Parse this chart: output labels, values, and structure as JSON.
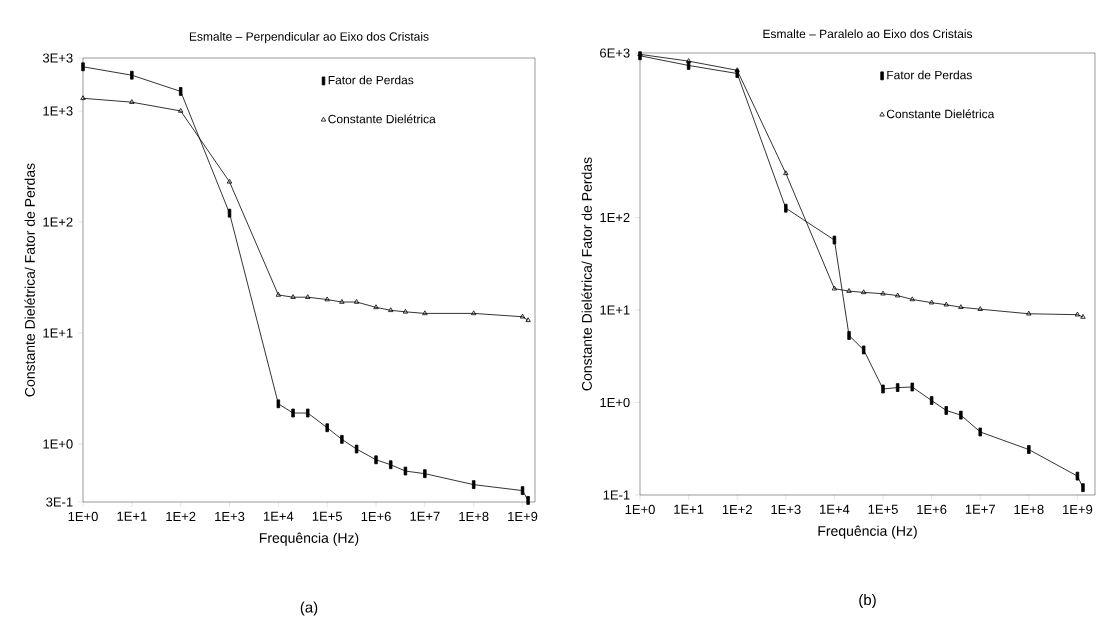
{
  "chart_data": [
    {
      "type": "line",
      "title": "Esmalte – Perpendicular ao Eixo dos Cristais",
      "xlabel": "Frequência (Hz)",
      "ylabel": "Constante Dielétrica/ Fator de Perdas",
      "annotations": [
        "(a)"
      ],
      "log": "xy",
      "legend": "top right",
      "line_style": "solid",
      "xlim": [
        1,
        1800000000
      ],
      "ylim": [
        0.3,
        3000
      ],
      "xticks": [
        {
          "value": 1,
          "label": "1E+0"
        },
        {
          "value": 10,
          "label": "1E+1"
        },
        {
          "value": 100,
          "label": "1E+2"
        },
        {
          "value": 1000,
          "label": "1E+3"
        },
        {
          "value": 10000,
          "label": "1E+4"
        },
        {
          "value": 100000,
          "label": "1E+5"
        },
        {
          "value": 1000000,
          "label": "1E+6"
        },
        {
          "value": 10000000,
          "label": "1E+7"
        },
        {
          "value": 100000000,
          "label": "1E+8"
        },
        {
          "value": 1000000000,
          "label": "1E+9"
        }
      ],
      "yticks": [
        {
          "value": 3000,
          "label": "3E+3"
        },
        {
          "value": 1000,
          "label": "1E+3"
        },
        {
          "value": 100,
          "label": "1E+2"
        },
        {
          "value": 10,
          "label": "1E+1"
        },
        {
          "value": 1,
          "label": "1E+0"
        },
        {
          "value": 0.3,
          "label": "3E-1"
        }
      ],
      "x": [
        1,
        10,
        100,
        1000,
        10000,
        20000,
        40000,
        100000,
        200000,
        400000,
        1000000,
        2000000,
        4000000,
        10000000,
        100000000,
        1000000000,
        1300000000
      ],
      "series": [
        {
          "name": "Fator de Perdas",
          "color": "#000000",
          "marker": "square",
          "values": [
            2500,
            2100,
            1500,
            120,
            2.3,
            1.9,
            1.9,
            1.4,
            1.1,
            0.9,
            0.72,
            0.65,
            0.57,
            0.54,
            0.43,
            0.38,
            0.31
          ]
        },
        {
          "name": "Constante Dielétrica",
          "color": "#000000",
          "marker": "triangle",
          "values": [
            1300,
            1200,
            1000,
            230,
            22,
            21,
            21,
            20,
            19,
            19,
            17,
            16,
            15.5,
            15,
            15,
            14,
            13
          ]
        }
      ]
    },
    {
      "type": "line",
      "title": "Esmalte – Paralelo ao Eixo dos Cristais",
      "xlabel": "Frequência (Hz)",
      "ylabel": "Constante Dielétrica/ Fator de Perdas",
      "annotations": [
        "(b)"
      ],
      "log": "xy",
      "legend": "top right",
      "line_style": "solid",
      "xlim": [
        1,
        2300000000
      ],
      "ylim": [
        0.1,
        6000
      ],
      "xticks": [
        {
          "value": 1,
          "label": "1E+0"
        },
        {
          "value": 10,
          "label": "1E+1"
        },
        {
          "value": 100,
          "label": "1E+2"
        },
        {
          "value": 1000,
          "label": "1E+3"
        },
        {
          "value": 10000,
          "label": "1E+4"
        },
        {
          "value": 100000,
          "label": "1E+5"
        },
        {
          "value": 1000000,
          "label": "1E+6"
        },
        {
          "value": 10000000,
          "label": "1E+7"
        },
        {
          "value": 100000000,
          "label": "1E+8"
        },
        {
          "value": 1000000000,
          "label": "1E+9"
        }
      ],
      "yticks": [
        {
          "value": 6000,
          "label": "6E+3"
        },
        {
          "value": 100,
          "label": "1E+2"
        },
        {
          "value": 10,
          "label": "1E+1"
        },
        {
          "value": 1,
          "label": "1E+0"
        },
        {
          "value": 0.1,
          "label": "1E-1"
        }
      ],
      "x": [
        1,
        10,
        100,
        1000,
        10000,
        20000,
        40000,
        100000,
        200000,
        400000,
        1000000,
        2000000,
        4000000,
        10000000,
        100000000,
        1000000000,
        1300000000
      ],
      "series": [
        {
          "name": "Fator de Perdas",
          "color": "#000000",
          "marker": "square",
          "values": [
            5600,
            4400,
            3600,
            126,
            57,
            5.3,
            3.7,
            1.4,
            1.45,
            1.47,
            1.05,
            0.82,
            0.73,
            0.48,
            0.31,
            0.16,
            0.12
          ]
        },
        {
          "name": "Constante Dielétrica",
          "color": "#000000",
          "marker": "triangle",
          "values": [
            5800,
            4900,
            3900,
            300,
            17,
            16,
            15.5,
            15,
            14.3,
            13,
            12,
            11.4,
            10.7,
            10.2,
            9.1,
            8.9,
            8.4
          ]
        }
      ]
    }
  ]
}
